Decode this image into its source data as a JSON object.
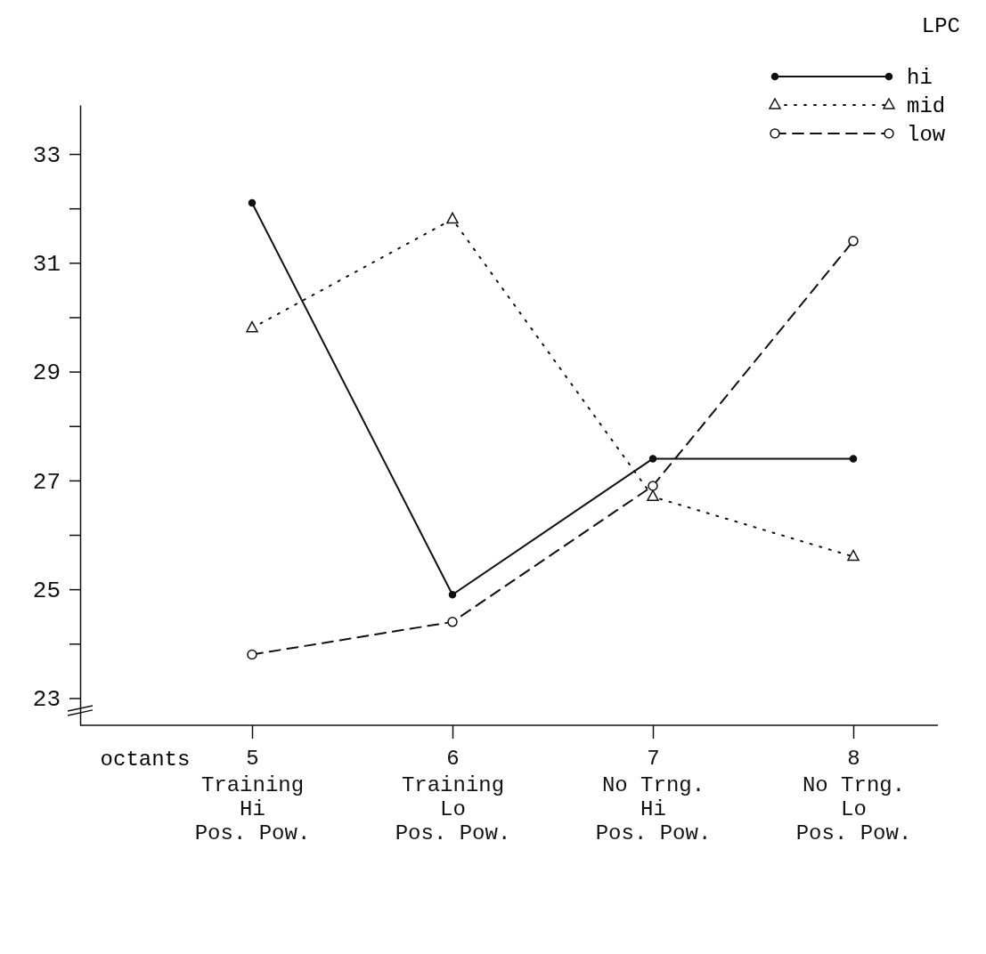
{
  "chart_data": {
    "type": "line",
    "xlabel": "octants",
    "legend_title": "LPC",
    "legend": "top right",
    "categories": [
      "5\nTraining\nHi\nPos. Pow.",
      "6\nTraining\nLo\nPos. Pow.",
      "7\nNo Trng.\nHi\nPos. Pow.",
      "8\nNo Trng.\nLo\nPos. Pow."
    ],
    "ylim": [
      22.5,
      33.9
    ],
    "yticks": [
      23,
      {
        "value": 24,
        "label": null
      },
      25,
      {
        "value": 26,
        "label": null
      },
      27,
      {
        "value": 28,
        "label": null
      },
      29,
      {
        "value": 30,
        "label": null
      },
      31,
      {
        "value": 32,
        "label": null
      },
      33
    ],
    "grid": false,
    "series": [
      {
        "name": "hi",
        "color": "#111111",
        "marker": "circle",
        "line_style": "solid",
        "values": [
          32.1,
          24.9,
          27.4,
          27.4
        ]
      },
      {
        "name": "mid",
        "color": "#111111",
        "marker": "triangle",
        "line_style": "dotted",
        "values": [
          29.8,
          31.8,
          26.7,
          25.6
        ]
      },
      {
        "name": "low",
        "color": "#111111",
        "marker": "circle",
        "line_style": "dashed",
        "values": [
          23.8,
          24.4,
          26.9,
          31.4
        ]
      }
    ]
  }
}
